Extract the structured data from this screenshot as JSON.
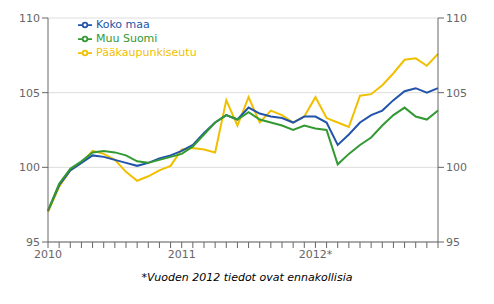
{
  "chart_data": {
    "type": "line",
    "categories": [
      "2010",
      null,
      null,
      null,
      null,
      null,
      null,
      null,
      null,
      null,
      null,
      null,
      "2011",
      null,
      null,
      null,
      null,
      null,
      null,
      null,
      null,
      null,
      null,
      null,
      "2012*",
      null,
      null,
      null,
      null,
      null,
      null,
      null,
      null,
      null,
      null,
      null
    ],
    "series": [
      {
        "name": "Pääkaupunkiseutu",
        "color": "#f0c000",
        "values": [
          97.0,
          98.7,
          99.8,
          100.3,
          101.1,
          100.9,
          100.5,
          99.7,
          99.1,
          99.4,
          99.8,
          100.1,
          101.2,
          101.3,
          101.2,
          101.0,
          104.5,
          102.8,
          104.7,
          103.0,
          103.8,
          103.5,
          103.0,
          103.4,
          104.7,
          103.3,
          103.0,
          102.7,
          104.8,
          104.9,
          105.5,
          106.3,
          107.2,
          107.3,
          106.8,
          107.6
        ]
      },
      {
        "name": "Koko maa",
        "color": "#2255aa",
        "values": [
          97.1,
          98.8,
          99.8,
          100.3,
          100.8,
          100.7,
          100.5,
          100.3,
          100.1,
          100.3,
          100.6,
          100.8,
          101.1,
          101.5,
          102.3,
          103.0,
          103.5,
          103.2,
          104.0,
          103.6,
          103.4,
          103.3,
          103.0,
          103.4,
          103.4,
          103.0,
          101.5,
          102.2,
          103.0,
          103.5,
          103.8,
          104.5,
          105.1,
          105.3,
          105.0,
          105.3
        ]
      },
      {
        "name": "Muu Suomi",
        "color": "#339933",
        "values": [
          97.1,
          98.9,
          99.9,
          100.4,
          101.0,
          101.1,
          101.0,
          100.8,
          100.4,
          100.3,
          100.5,
          100.7,
          100.9,
          101.4,
          102.2,
          103.0,
          103.5,
          103.2,
          103.7,
          103.2,
          103.0,
          102.8,
          102.5,
          102.8,
          102.6,
          102.5,
          100.2,
          100.9,
          101.5,
          102.0,
          102.8,
          103.5,
          104.0,
          103.4,
          103.2,
          103.8
        ]
      }
    ],
    "ylim": [
      95,
      110
    ],
    "yticks": [
      95,
      100,
      105,
      110
    ],
    "y2lim": [
      95,
      110
    ],
    "y2ticks": [
      95,
      100,
      105,
      110
    ],
    "grid": true,
    "legend": "upper left",
    "annotations": [
      "*Vuoden 2012 tiedot ovat ennakollisia"
    ]
  }
}
